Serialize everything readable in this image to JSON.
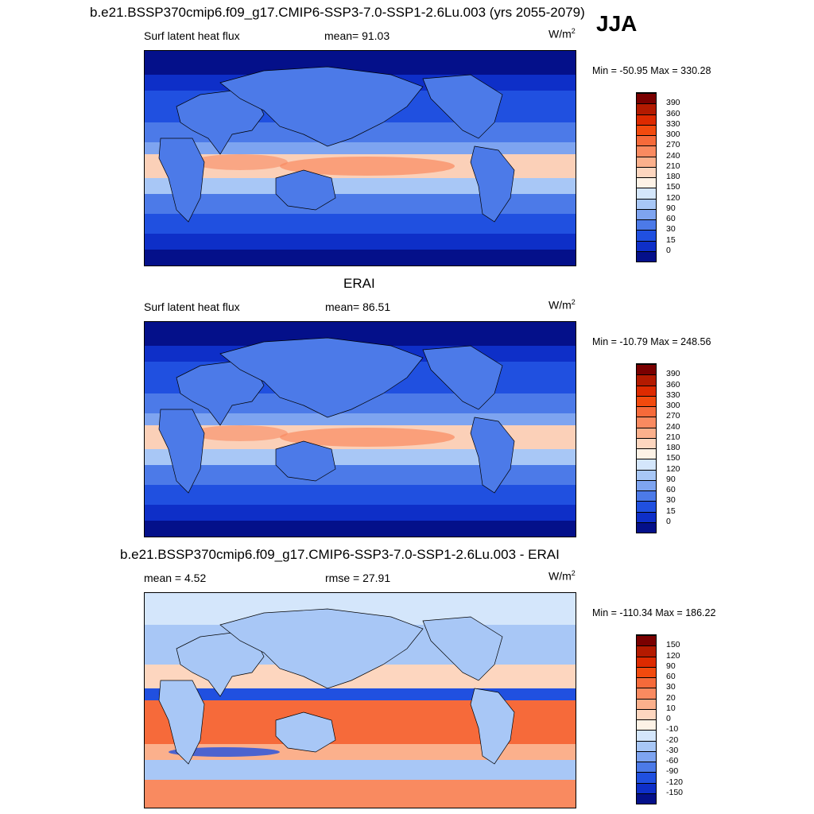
{
  "season": "JJA",
  "panels": [
    {
      "title": "b.e21.BSSP370cmip6.f09_g17.CMIP6-SSP3-7.0-SSP1-2.6Lu.003 (yrs 2055-2079)",
      "left_label": "Surf latent heat flux",
      "center_label": "mean=  91.03",
      "units": "W/m",
      "units_sup": "2",
      "minmax": "Min = -50.95 Max = 330.28",
      "colorbar": {
        "labels": [
          "390",
          "360",
          "330",
          "300",
          "270",
          "240",
          "210",
          "180",
          "150",
          "120",
          "90",
          "60",
          "30",
          "15",
          "0"
        ],
        "colors": [
          "#7a0000",
          "#b31a00",
          "#dd2a00",
          "#f24a0e",
          "#f66a3a",
          "#f98a60",
          "#fbb08c",
          "#fdd6bf",
          "#fdf2e6",
          "#d4e6fb",
          "#a8c7f6",
          "#7ea4f0",
          "#4c7ae8",
          "#2050e0",
          "#0e2fc8",
          "#04108a"
        ]
      },
      "scheme": "abs"
    },
    {
      "title": "ERAI",
      "left_label": "Surf latent heat flux",
      "center_label": "mean=  86.51",
      "units": "W/m",
      "units_sup": "2",
      "minmax": "Min = -10.79 Max = 248.56",
      "colorbar": {
        "labels": [
          "390",
          "360",
          "330",
          "300",
          "270",
          "240",
          "210",
          "180",
          "150",
          "120",
          "90",
          "60",
          "30",
          "15",
          "0"
        ],
        "colors": [
          "#7a0000",
          "#b31a00",
          "#dd2a00",
          "#f24a0e",
          "#f66a3a",
          "#f98a60",
          "#fbb08c",
          "#fdd6bf",
          "#fdf2e6",
          "#d4e6fb",
          "#a8c7f6",
          "#7ea4f0",
          "#4c7ae8",
          "#2050e0",
          "#0e2fc8",
          "#04108a"
        ]
      },
      "scheme": "abs"
    },
    {
      "title": "b.e21.BSSP370cmip6.f09_g17.CMIP6-SSP3-7.0-SSP1-2.6Lu.003 - ERAI",
      "left_label": "mean =   4.52",
      "center_label": "rmse =  27.91",
      "units": "W/m",
      "units_sup": "2",
      "minmax": "Min = -110.34 Max = 186.22",
      "colorbar": {
        "labels": [
          "150",
          "120",
          "90",
          "60",
          "30",
          "20",
          "10",
          "0",
          "-10",
          "-20",
          "-30",
          "-60",
          "-90",
          "-120",
          "-150"
        ],
        "colors": [
          "#7a0000",
          "#b31a00",
          "#dd2a00",
          "#f24a0e",
          "#f66a3a",
          "#f98a60",
          "#fbb08c",
          "#fdd6bf",
          "#fdf2e6",
          "#d4e6fb",
          "#a8c7f6",
          "#7ea4f0",
          "#4c7ae8",
          "#2050e0",
          "#0e2fc8",
          "#04108a"
        ]
      },
      "scheme": "diff"
    }
  ]
}
